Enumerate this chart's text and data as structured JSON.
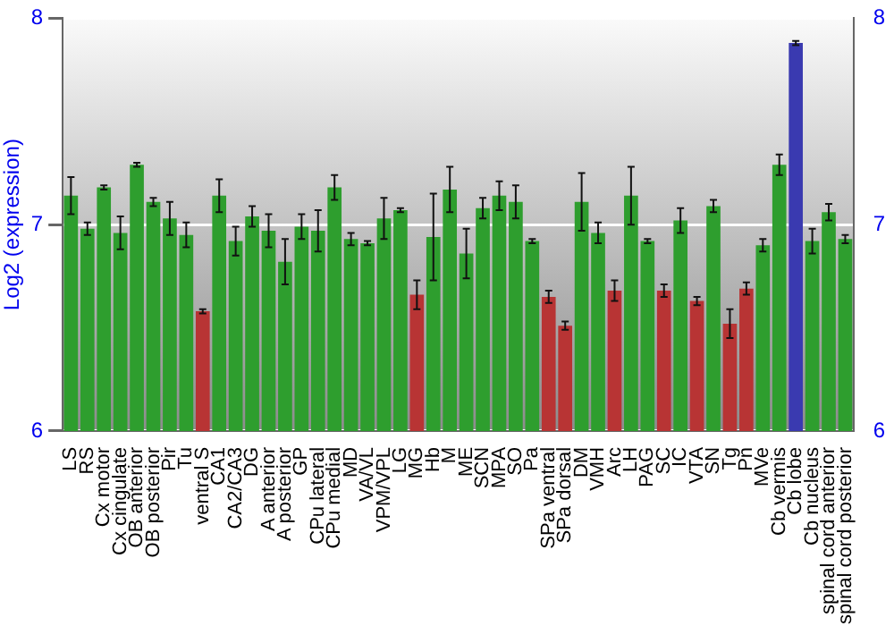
{
  "chart_data": {
    "type": "bar",
    "ylabel": "Log2 (expression)",
    "categories": [
      "LS",
      "RS",
      "Cx motor",
      "Cx cingulate",
      "OB anterior",
      "OB posterior",
      "Pir",
      "Tu",
      "ventral S",
      "CA1",
      "CA2/CA3",
      "DG",
      "A anterior",
      "A posterior",
      "GP",
      "CPu lateral",
      "CPu medial",
      "MD",
      "VA/VL",
      "VPM/VPL",
      "LG",
      "MG",
      "Hb",
      "M",
      "ME",
      "SCN",
      "MPA",
      "SO",
      "Pa",
      "SPa ventral",
      "SPa dorsal",
      "DM",
      "VMH",
      "Arc",
      "LH",
      "PAG",
      "SC",
      "IC",
      "VTA",
      "SN",
      "Tg",
      "Pn",
      "MVe",
      "Cb vermis",
      "Cb lobe",
      "Cb nucleus",
      "spinal cord anterior",
      "spinal cord posterior"
    ],
    "values": [
      7.14,
      6.98,
      7.18,
      6.96,
      7.29,
      7.11,
      7.03,
      6.95,
      6.58,
      7.14,
      6.92,
      7.04,
      6.97,
      6.82,
      6.99,
      6.97,
      7.18,
      6.93,
      6.91,
      7.03,
      7.07,
      6.66,
      6.94,
      7.17,
      6.86,
      7.08,
      7.14,
      7.11,
      6.92,
      6.65,
      6.51,
      7.11,
      6.96,
      6.68,
      7.14,
      6.92,
      6.68,
      7.02,
      6.63,
      7.09,
      6.52,
      6.69,
      6.9,
      7.29,
      7.88,
      6.92,
      7.06,
      6.93
    ],
    "errors": [
      0.09,
      0.03,
      0.01,
      0.08,
      0.01,
      0.02,
      0.08,
      0.06,
      0.01,
      0.08,
      0.07,
      0.05,
      0.08,
      0.11,
      0.06,
      0.1,
      0.06,
      0.03,
      0.01,
      0.1,
      0.01,
      0.07,
      0.21,
      0.11,
      0.12,
      0.05,
      0.07,
      0.08,
      0.01,
      0.03,
      0.02,
      0.14,
      0.05,
      0.05,
      0.14,
      0.01,
      0.03,
      0.06,
      0.02,
      0.03,
      0.07,
      0.03,
      0.03,
      0.05,
      0.01,
      0.06,
      0.04,
      0.02
    ],
    "colors": [
      "#2e9e2e",
      "#2e9e2e",
      "#2e9e2e",
      "#2e9e2e",
      "#2e9e2e",
      "#2e9e2e",
      "#2e9e2e",
      "#2e9e2e",
      "#b83434",
      "#2e9e2e",
      "#2e9e2e",
      "#2e9e2e",
      "#2e9e2e",
      "#2e9e2e",
      "#2e9e2e",
      "#2e9e2e",
      "#2e9e2e",
      "#2e9e2e",
      "#2e9e2e",
      "#2e9e2e",
      "#2e9e2e",
      "#b83434",
      "#2e9e2e",
      "#2e9e2e",
      "#2e9e2e",
      "#2e9e2e",
      "#2e9e2e",
      "#2e9e2e",
      "#2e9e2e",
      "#b83434",
      "#b83434",
      "#2e9e2e",
      "#2e9e2e",
      "#b83434",
      "#2e9e2e",
      "#2e9e2e",
      "#b83434",
      "#2e9e2e",
      "#b83434",
      "#2e9e2e",
      "#b83434",
      "#b83434",
      "#2e9e2e",
      "#2e9e2e",
      "#3a3ab0",
      "#2e9e2e",
      "#2e9e2e",
      "#2e9e2e"
    ],
    "ylim": [
      6,
      8
    ],
    "yticks": [
      6,
      7,
      8
    ],
    "y2lim": [
      6,
      8
    ],
    "y2ticks": [
      6,
      7,
      8
    ],
    "grid": "y",
    "legend": false
  }
}
